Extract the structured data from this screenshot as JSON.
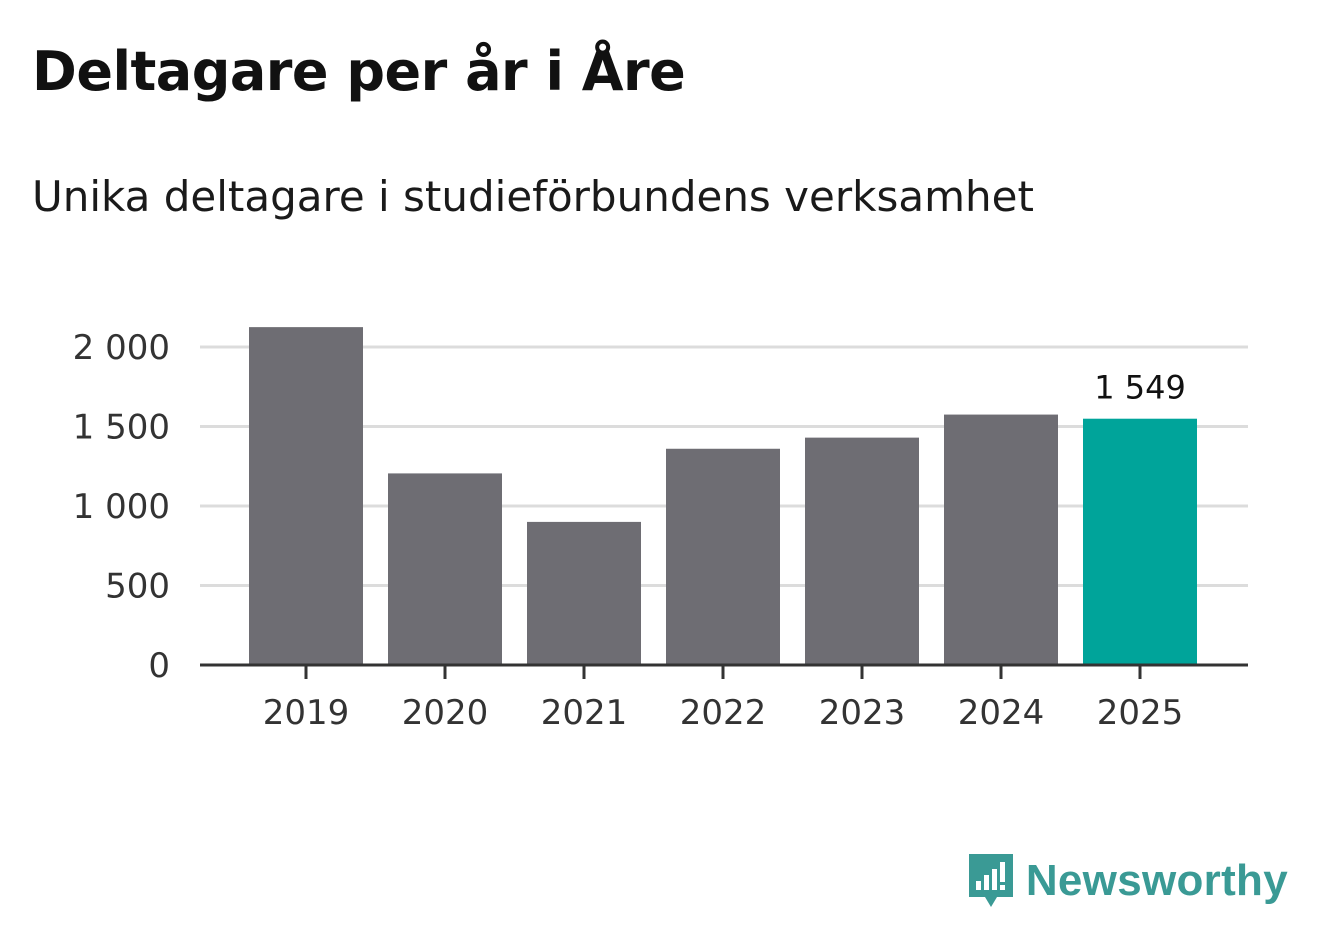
{
  "header": {
    "title": "Deltagare per år i Åre",
    "subtitle": "Unika deltagare i studieförbundens verksamhet"
  },
  "chart_data": {
    "type": "bar",
    "title": "Deltagare per år i Åre",
    "subtitle": "Unika deltagare i studieförbundens verksamhet",
    "xlabel": "",
    "ylabel": "",
    "categories": [
      "2019",
      "2020",
      "2021",
      "2022",
      "2023",
      "2024",
      "2025"
    ],
    "values": [
      2125,
      1205,
      900,
      1360,
      1430,
      1575,
      1549
    ],
    "highlight_index": 6,
    "highlight_label": "1 549",
    "ylim": [
      0,
      2000
    ],
    "yticks": [
      0,
      500,
      1000,
      1500,
      2000
    ],
    "ytick_labels": [
      "0",
      "500",
      "1 000",
      "1 500",
      "2 000"
    ],
    "grid": true,
    "colors": {
      "bar": "#6e6d73",
      "highlight": "#00a49a",
      "grid": "#dcdcdc",
      "axis": "#333333"
    }
  },
  "brand": {
    "name": "Newsworthy",
    "icon": "newsworthy-logo-icon",
    "color": "#3a9a95"
  }
}
